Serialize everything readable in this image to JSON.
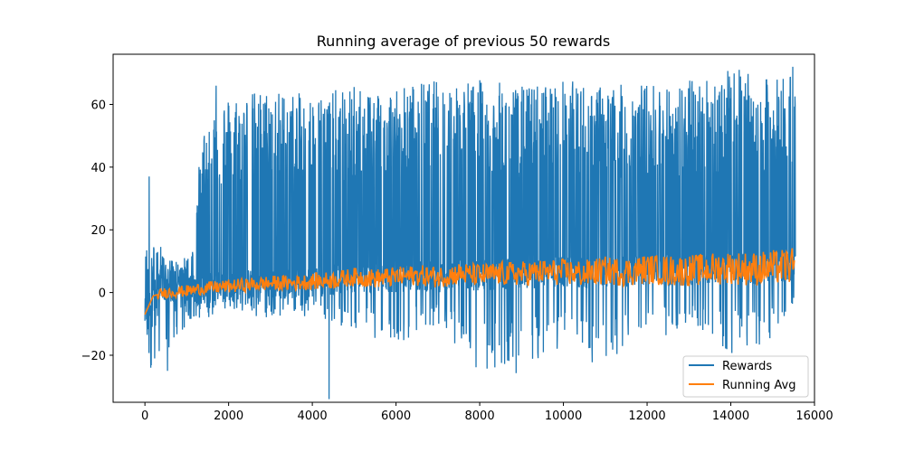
{
  "chart_data": {
    "type": "line",
    "title": "Running average of previous 50 rewards",
    "xlabel": "",
    "ylabel": "",
    "xlim": [
      -760,
      16000
    ],
    "ylim": [
      -35,
      76
    ],
    "xticks": [
      0,
      2000,
      4000,
      6000,
      8000,
      10000,
      12000,
      14000,
      16000
    ],
    "xtick_labels": [
      "0",
      "2000",
      "4000",
      "6000",
      "8000",
      "10000",
      "12000",
      "14000",
      "16000"
    ],
    "yticks": [
      -20,
      0,
      20,
      40,
      60
    ],
    "ytick_labels": [
      "−20",
      "0",
      "20",
      "40",
      "60"
    ],
    "legend": {
      "position": "lower-right",
      "entries": [
        "Rewards",
        "Running Avg"
      ]
    },
    "grid": false,
    "series": [
      {
        "name": "Rewards",
        "color": "#1f77b4",
        "note_form": "noisy episode rewards, shown as dense high-frequency band",
        "envelope": {
          "x": [
            0,
            100,
            500,
            1000,
            1500,
            2000,
            3000,
            4000,
            5000,
            6000,
            7000,
            8000,
            9000,
            10000,
            11000,
            12000,
            13000,
            14000,
            15000,
            15550
          ],
          "upper": [
            17,
            37,
            10,
            13,
            60,
            63,
            65,
            63,
            66,
            66,
            68,
            68,
            66,
            68,
            66,
            67,
            68,
            71,
            68,
            72
          ],
          "lower": [
            -8,
            -24,
            -25,
            -10,
            -8,
            -6,
            -9,
            -8,
            -12,
            -17,
            -10,
            -26,
            -27,
            -17,
            -25,
            -17,
            -10,
            -20,
            -15,
            -2
          ]
        },
        "notable_points": [
          {
            "x": 100,
            "y": 37
          },
          {
            "x": 140,
            "y": -24
          },
          {
            "x": 540,
            "y": -25
          },
          {
            "x": 4400,
            "y": -34
          },
          {
            "x": 1700,
            "y": 66
          },
          {
            "x": 14200,
            "y": 71
          },
          {
            "x": 15480,
            "y": 72
          }
        ]
      },
      {
        "name": "Running Avg",
        "color": "#ff7f0e",
        "x": [
          0,
          200,
          500,
          1000,
          1500,
          2000,
          2500,
          3000,
          3500,
          4000,
          4500,
          5000,
          5500,
          6000,
          6500,
          7000,
          7500,
          8000,
          8500,
          9000,
          9500,
          10000,
          10500,
          11000,
          11500,
          12000,
          12500,
          13000,
          13500,
          14000,
          14500,
          15000,
          15500
        ],
        "y": [
          -7,
          -1,
          0,
          0.5,
          1.5,
          2,
          2.5,
          3,
          3,
          3.5,
          4,
          5,
          4.5,
          5,
          5.5,
          5,
          6,
          5.5,
          6,
          6,
          6.5,
          6.5,
          6,
          7,
          6.5,
          7.5,
          7,
          7,
          7.5,
          8,
          7.5,
          8,
          8.5
        ]
      }
    ]
  }
}
